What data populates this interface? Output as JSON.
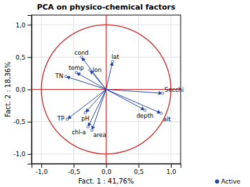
{
  "chart_data": {
    "type": "scatter",
    "title": "PCA on physico-chemical factors",
    "xlabel": "Fact. 1 : 41,76%",
    "ylabel": "Fact. 2 : 18,36%",
    "series": [
      {
        "name": "Active",
        "color": "#2244aa",
        "marker": "arrow",
        "labels": [
          "cond",
          "lat",
          "lon",
          "temp",
          "TN",
          "Secchi",
          "depth",
          "alt",
          "pH",
          "TP",
          "chl-a",
          "area"
        ],
        "x": [
          -0.38,
          0.1,
          -0.25,
          -0.46,
          -0.62,
          0.87,
          0.6,
          0.85,
          -0.32,
          -0.6,
          -0.28,
          -0.22
        ],
        "values": [
          0.5,
          0.43,
          0.3,
          0.26,
          0.2,
          -0.06,
          -0.32,
          -0.37,
          -0.36,
          -0.46,
          -0.58,
          -0.63
        ]
      }
    ],
    "xlim": [
      -1.15,
      1.15
    ],
    "ylim": [
      -1.15,
      1.15
    ],
    "xticks": [
      {
        "value": -1.0,
        "label": "-1,0"
      },
      {
        "value": -0.5,
        "label": "-0,5"
      },
      {
        "value": 0.0,
        "label": "0,0"
      },
      {
        "value": 0.5,
        "label": "0,5"
      },
      {
        "value": 1.0,
        "label": "1,0"
      }
    ],
    "yticks": [
      {
        "value": -1.0,
        "label": "-1,0"
      },
      {
        "value": -0.5,
        "label": "-0,5"
      },
      {
        "value": 0.0,
        "label": "0,0"
      },
      {
        "value": 0.5,
        "label": "0,5"
      },
      {
        "value": 1.0,
        "label": "1,0"
      }
    ],
    "grid": true,
    "legend": "lower right",
    "circle": {
      "radius": 1.0,
      "color": "#cc2222"
    },
    "reference_lines": {
      "x": 0.0,
      "y": 0.0,
      "color": "#cc2222"
    }
  }
}
